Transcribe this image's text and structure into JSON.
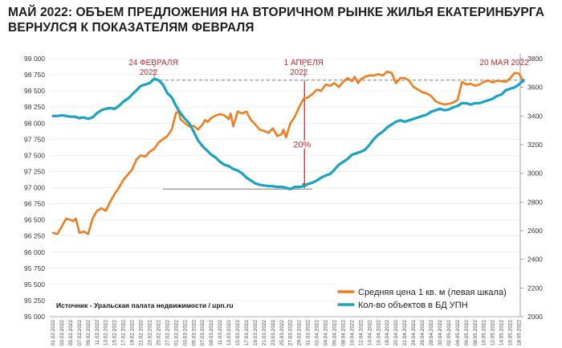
{
  "title_line1": "МАЙ 2022: ОБЪЕМ ПРЕДЛОЖЕНИЯ НА ВТОРИЧНОМ РЫНКЕ ЖИЛЬЯ ЕКАТЕРИНБУРГА",
  "title_line2": "ВЕРНУЛСЯ К ПОКАЗАТЕЛЯМ ФЕВРАЛЯ",
  "source": "Источник - Уральская палата недвижимости / upn.ru",
  "colors": {
    "price": "#f07d1e",
    "count": "#1aa2c2",
    "annotation": "#c4282e",
    "guide": "#7a7a7a"
  },
  "chart_data": {
    "type": "line",
    "dual_axis": true,
    "x_tick_labels": [
      "01.02.2022",
      "03.02.2022",
      "05.02.2022",
      "07.02.2022",
      "09.02.2022",
      "11.02.2022",
      "13.02.2022",
      "15.02.2022",
      "17.02.2022",
      "19.02.2022",
      "21.02.2022",
      "23.02.2022",
      "25.02.2022",
      "27.02.2022",
      "01.03.2022",
      "03.03.2022",
      "05.03.2022",
      "07.03.2022",
      "09.03.2022",
      "11.03.2022",
      "13.03.2022",
      "15.03.2022",
      "17.03.2022",
      "19.03.2022",
      "21.03.2022",
      "23.03.2022",
      "25.03.2022",
      "27.03.2022",
      "29.03.2022",
      "31.03.2022",
      "02.04.2022",
      "04.04.2022",
      "06.04.2022",
      "08.04.2022",
      "10.04.2022",
      "12.04.2022",
      "14.04.2022",
      "16.04.2022",
      "18.04.2022",
      "20.04.2022",
      "22.04.2022",
      "24.04.2022",
      "26.04.2022",
      "28.04.2022",
      "30.04.2022",
      "02.05.2022",
      "04.05.2022",
      "06.05.2022",
      "08.05.2022",
      "10.05.2022",
      "12.05.2022",
      "14.05.2022",
      "16.05.2022",
      "18.05.2022"
    ],
    "left_axis": {
      "min": 95000,
      "max": 99000,
      "step": 250,
      "tick_labels": [
        "95 000",
        "95 250",
        "95 500",
        "95 750",
        "96 000",
        "96 250",
        "96 500",
        "96 750",
        "97 000",
        "97 250",
        "97 500",
        "97 750",
        "98 000",
        "98 250",
        "98 500",
        "98 750",
        "99 000"
      ]
    },
    "right_axis": {
      "min": 2000,
      "max": 3800,
      "step": 200,
      "tick_labels": [
        "2000",
        "2200",
        "2400",
        "2600",
        "2800",
        "3000",
        "3200",
        "3400",
        "3600",
        "3800"
      ]
    },
    "series": [
      {
        "name": "Средняя цена 1 кв. м (левая шкала)",
        "axis": "left",
        "points": [
          [
            0,
            96300
          ],
          [
            0.5,
            96280
          ],
          [
            1,
            96400
          ],
          [
            1.5,
            96520
          ],
          [
            2,
            96500
          ],
          [
            2.3,
            96480
          ],
          [
            2.6,
            96520
          ],
          [
            3,
            96300
          ],
          [
            3.5,
            96320
          ],
          [
            4,
            96280
          ],
          [
            4.5,
            96520
          ],
          [
            5,
            96640
          ],
          [
            5.5,
            96680
          ],
          [
            6,
            96640
          ],
          [
            6.5,
            96780
          ],
          [
            7,
            96900
          ],
          [
            7.5,
            97000
          ],
          [
            8,
            97120
          ],
          [
            8.5,
            97200
          ],
          [
            9,
            97280
          ],
          [
            9.5,
            97440
          ],
          [
            10,
            97500
          ],
          [
            10.5,
            97480
          ],
          [
            11,
            97560
          ],
          [
            11.5,
            97600
          ],
          [
            12,
            97700
          ],
          [
            12.5,
            97750
          ],
          [
            13,
            97800
          ],
          [
            13.5,
            97900
          ],
          [
            14,
            98160
          ],
          [
            14.3,
            98180
          ],
          [
            14.5,
            98060
          ],
          [
            15,
            98000
          ],
          [
            15.5,
            97950
          ],
          [
            16,
            97960
          ],
          [
            16.5,
            97900
          ],
          [
            17,
            97980
          ],
          [
            17.3,
            98050
          ],
          [
            17.6,
            98020
          ],
          [
            18,
            98080
          ],
          [
            18.5,
            98120
          ],
          [
            19,
            98140
          ],
          [
            19.5,
            98120
          ],
          [
            20,
            98060
          ],
          [
            20.2,
            98150
          ],
          [
            20.5,
            97950
          ],
          [
            21,
            98180
          ],
          [
            21.5,
            98150
          ],
          [
            22,
            98180
          ],
          [
            22.5,
            98050
          ],
          [
            23,
            97980
          ],
          [
            23.5,
            97900
          ],
          [
            24,
            97880
          ],
          [
            24.5,
            97850
          ],
          [
            25,
            97920
          ],
          [
            25.5,
            97800
          ],
          [
            26,
            97830
          ],
          [
            26.2,
            97900
          ],
          [
            26.5,
            97780
          ],
          [
            27,
            98000
          ],
          [
            27.5,
            98100
          ],
          [
            28,
            98250
          ],
          [
            28.5,
            98380
          ],
          [
            29,
            98400
          ],
          [
            29.5,
            98450
          ],
          [
            30,
            98520
          ],
          [
            30.5,
            98500
          ],
          [
            31,
            98600
          ],
          [
            31.5,
            98580
          ],
          [
            32,
            98620
          ],
          [
            32.5,
            98560
          ],
          [
            33,
            98640
          ],
          [
            33.5,
            98700
          ],
          [
            34,
            98650
          ],
          [
            34.3,
            98720
          ],
          [
            34.7,
            98620
          ],
          [
            35,
            98680
          ],
          [
            35.5,
            98720
          ],
          [
            36,
            98740
          ],
          [
            36.5,
            98740
          ],
          [
            37,
            98760
          ],
          [
            37.5,
            98740
          ],
          [
            38,
            98800
          ],
          [
            38.5,
            98780
          ],
          [
            39,
            98620
          ],
          [
            39.5,
            98700
          ],
          [
            40,
            98700
          ],
          [
            40.5,
            98660
          ],
          [
            41,
            98560
          ],
          [
            41.5,
            98520
          ],
          [
            42,
            98480
          ],
          [
            42.5,
            98460
          ],
          [
            43,
            98420
          ],
          [
            43.5,
            98340
          ],
          [
            44,
            98310
          ],
          [
            44.5,
            98290
          ],
          [
            45,
            98300
          ],
          [
            45.5,
            98320
          ],
          [
            46,
            98360
          ],
          [
            46.5,
            98640
          ],
          [
            47,
            98600
          ],
          [
            47.5,
            98610
          ],
          [
            48,
            98580
          ],
          [
            48.5,
            98600
          ],
          [
            49,
            98640
          ],
          [
            49.5,
            98660
          ],
          [
            50,
            98630
          ],
          [
            50.5,
            98660
          ],
          [
            51,
            98650
          ],
          [
            51.5,
            98640
          ],
          [
            52,
            98700
          ],
          [
            52.5,
            98780
          ],
          [
            53,
            98770
          ],
          [
            53.5,
            98640
          ]
        ]
      },
      {
        "name": "Кол-во объектов в БД УПН",
        "axis": "right",
        "points": [
          [
            0,
            3400
          ],
          [
            0.5,
            3400
          ],
          [
            1,
            3405
          ],
          [
            1.5,
            3400
          ],
          [
            2,
            3395
          ],
          [
            2.5,
            3395
          ],
          [
            3,
            3385
          ],
          [
            3.5,
            3390
          ],
          [
            4,
            3380
          ],
          [
            4.5,
            3390
          ],
          [
            5,
            3420
          ],
          [
            5.5,
            3440
          ],
          [
            6,
            3450
          ],
          [
            6.5,
            3455
          ],
          [
            7,
            3450
          ],
          [
            7.5,
            3470
          ],
          [
            8,
            3500
          ],
          [
            8.5,
            3520
          ],
          [
            9,
            3550
          ],
          [
            9.5,
            3580
          ],
          [
            10,
            3610
          ],
          [
            10.5,
            3620
          ],
          [
            11,
            3630
          ],
          [
            11.5,
            3660
          ],
          [
            12,
            3650
          ],
          [
            12.5,
            3620
          ],
          [
            13,
            3560
          ],
          [
            13.5,
            3530
          ],
          [
            14,
            3470
          ],
          [
            14.5,
            3420
          ],
          [
            15,
            3380
          ],
          [
            15.5,
            3350
          ],
          [
            16,
            3290
          ],
          [
            16.5,
            3230
          ],
          [
            17,
            3190
          ],
          [
            17.5,
            3160
          ],
          [
            18,
            3130
          ],
          [
            18.5,
            3110
          ],
          [
            19,
            3080
          ],
          [
            19.5,
            3060
          ],
          [
            20,
            3050
          ],
          [
            20.5,
            3030
          ],
          [
            21,
            3020
          ],
          [
            21.5,
            3000
          ],
          [
            22,
            2970
          ],
          [
            22.5,
            2950
          ],
          [
            23,
            2930
          ],
          [
            23.5,
            2920
          ],
          [
            24,
            2915
          ],
          [
            24.5,
            2912
          ],
          [
            25,
            2910
          ],
          [
            25.5,
            2905
          ],
          [
            26,
            2905
          ],
          [
            26.5,
            2900
          ],
          [
            27,
            2890
          ],
          [
            27.5,
            2905
          ],
          [
            28,
            2905
          ],
          [
            28.5,
            2910
          ],
          [
            29,
            2925
          ],
          [
            29.5,
            2935
          ],
          [
            30,
            2950
          ],
          [
            30.5,
            2970
          ],
          [
            31,
            2985
          ],
          [
            31.5,
            2995
          ],
          [
            32,
            3025
          ],
          [
            32.5,
            3060
          ],
          [
            33,
            3080
          ],
          [
            33.5,
            3100
          ],
          [
            34,
            3130
          ],
          [
            34.5,
            3140
          ],
          [
            35,
            3150
          ],
          [
            35.5,
            3165
          ],
          [
            36,
            3200
          ],
          [
            36.5,
            3240
          ],
          [
            37,
            3270
          ],
          [
            37.5,
            3290
          ],
          [
            38,
            3320
          ],
          [
            38.5,
            3340
          ],
          [
            39,
            3360
          ],
          [
            39.5,
            3370
          ],
          [
            40,
            3360
          ],
          [
            40.5,
            3370
          ],
          [
            41,
            3380
          ],
          [
            41.5,
            3390
          ],
          [
            42,
            3400
          ],
          [
            42.5,
            3410
          ],
          [
            43,
            3430
          ],
          [
            43.5,
            3440
          ],
          [
            44,
            3450
          ],
          [
            44.5,
            3440
          ],
          [
            45,
            3445
          ],
          [
            45.5,
            3460
          ],
          [
            46,
            3470
          ],
          [
            46.5,
            3490
          ],
          [
            47,
            3490
          ],
          [
            47.5,
            3480
          ],
          [
            48,
            3490
          ],
          [
            48.5,
            3490
          ],
          [
            49,
            3500
          ],
          [
            49.5,
            3510
          ],
          [
            50,
            3520
          ],
          [
            50.5,
            3540
          ],
          [
            51,
            3550
          ],
          [
            51.5,
            3580
          ],
          [
            52,
            3590
          ],
          [
            52.5,
            3600
          ],
          [
            53,
            3620
          ],
          [
            53.5,
            3650
          ]
        ]
      }
    ],
    "annotations": [
      {
        "line1": "24 ФЕВРАЛЯ",
        "line2": "2022",
        "x": 11.5
      },
      {
        "line1": "1 АПРЕЛЯ",
        "line2": "2022",
        "x": 28.6
      },
      {
        "line1": "20 МАЯ 2022",
        "line2": "",
        "x": 53.2
      }
    ],
    "change_label": "20%"
  }
}
